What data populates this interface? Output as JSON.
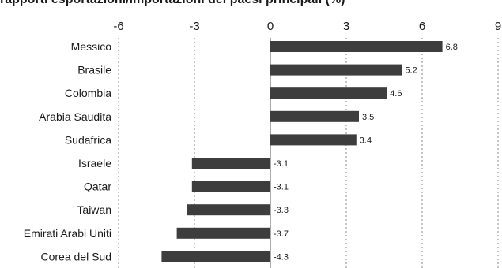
{
  "chart_data": {
    "type": "bar",
    "orientation": "horizontal",
    "title": "rapporti esportazioni/importazioni dei paesi principali (%)",
    "categories": [
      "Messico",
      "Brasile",
      "Colombia",
      "Arabia Saudita",
      "Sudafrica",
      "Israele",
      "Qatar",
      "Taiwan",
      "Emirati Arabi Uniti",
      "Corea del Sud"
    ],
    "values": [
      6.8,
      5.2,
      4.6,
      3.5,
      3.4,
      -3.1,
      -3.1,
      -3.3,
      -3.7,
      -4.3
    ],
    "value_labels": [
      "6.8",
      "5.2",
      "4.6",
      "3.5",
      "3.4",
      "-3.1",
      "-3.1",
      "-3.3",
      "-3.7",
      "-4.3"
    ],
    "xlim": [
      -6,
      9
    ],
    "xticks": [
      -6,
      -3,
      0,
      3,
      6,
      9
    ],
    "xtick_labels": [
      "-6",
      "-3",
      "0",
      "3",
      "6",
      "9"
    ],
    "grid": "vertical dotted",
    "bar_color": "#3d3d3d"
  }
}
